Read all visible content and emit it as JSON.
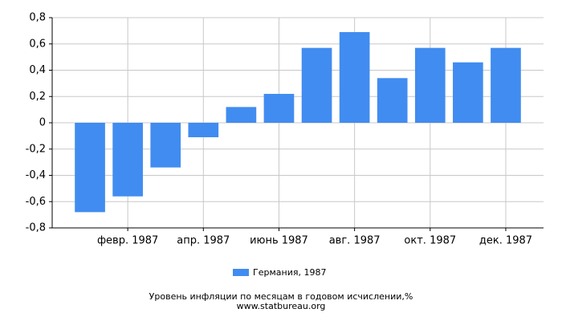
{
  "chart_data": {
    "type": "bar",
    "categories": [
      null,
      "февр. 1987",
      null,
      "апр. 1987",
      null,
      "июнь 1987",
      null,
      "авг. 1987",
      null,
      "окт. 1987",
      null,
      "дек. 1987"
    ],
    "series": [
      {
        "name": "Германия, 1987",
        "color": "#418cf0",
        "values": [
          -0.68,
          -0.56,
          -0.34,
          -0.11,
          0.12,
          0.22,
          0.57,
          0.69,
          0.34,
          0.57,
          0.46,
          0.57
        ]
      }
    ],
    "ylim": [
      -0.8,
      0.8
    ],
    "yticks": [
      {
        "value": -0.8,
        "label": "-0,8"
      },
      {
        "value": -0.6,
        "label": "-0,6"
      },
      {
        "value": -0.4,
        "label": "-0,4"
      },
      {
        "value": -0.2,
        "label": "-0,2"
      },
      0,
      {
        "value": 0.2,
        "label": "0,2"
      },
      {
        "value": 0.4,
        "label": "0,4"
      },
      {
        "value": 0.6,
        "label": "0,6"
      },
      {
        "value": 0.8,
        "label": "0,8"
      }
    ],
    "grid": true,
    "title": "Уровень инфляции по месяцам в годовом исчислении,%",
    "source": "www.statbureau.org"
  }
}
